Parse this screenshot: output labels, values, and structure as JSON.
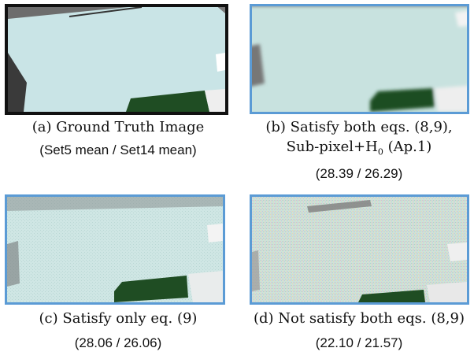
{
  "figure": {
    "panels": [
      {
        "id": "a",
        "caption_tag": "(a)",
        "caption_text": "Ground Truth Image",
        "metric_line": "(Set5 mean / Set14 mean)",
        "border_color": "#111111"
      },
      {
        "id": "b",
        "caption_tag": "(b)",
        "caption_text": "Satisfy both eqs. (8,9),",
        "caption_line2_prefix": "Sub-pixel+H",
        "caption_line2_sub": "0",
        "caption_line2_suffix": "(Ap.1)",
        "metric_line": "(28.39 / 26.29)",
        "border_color": "#5b9bd5"
      },
      {
        "id": "c",
        "caption_tag": "(c)",
        "caption_text": "Satisfy only eq. (9)",
        "metric_line": "(28.06 / 26.06)",
        "border_color": "#5b9bd5"
      },
      {
        "id": "d",
        "caption_tag": "(d)",
        "caption_text": "Not satisfy both eqs. (8,9)",
        "metric_line": "(22.10 / 21.57)",
        "border_color": "#5b9bd5"
      }
    ],
    "colors": {
      "panel_fill": "#c9e4e6",
      "dark_green": "#1f4d23",
      "background_gray": "#7b7b7b"
    }
  }
}
